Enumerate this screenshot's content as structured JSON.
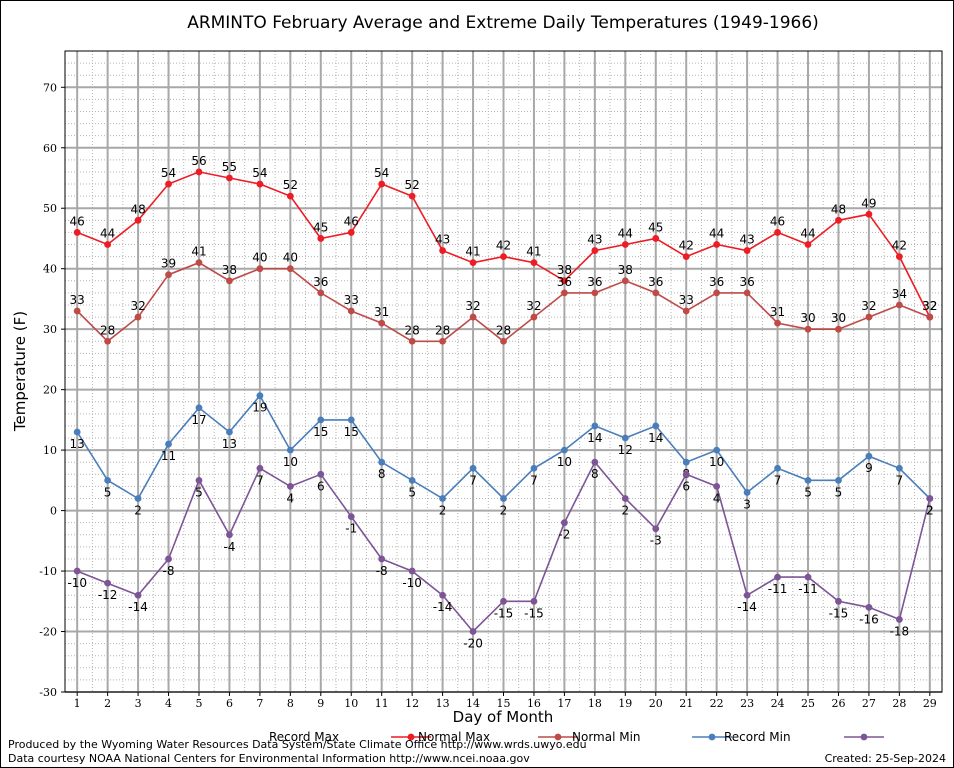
{
  "chart_data": {
    "type": "line",
    "title": "ARMINTO February Average and Extreme Daily Temperatures (1949-1966)",
    "xlabel": "Day of Month",
    "ylabel": "Temperature (F)",
    "x": [
      1,
      2,
      3,
      4,
      5,
      6,
      7,
      8,
      9,
      10,
      11,
      12,
      13,
      14,
      15,
      16,
      17,
      18,
      19,
      20,
      21,
      22,
      23,
      24,
      25,
      26,
      27,
      28,
      29
    ],
    "ylim": [
      -30,
      76
    ],
    "yticks": [
      -30,
      -20,
      -10,
      0,
      10,
      20,
      30,
      40,
      50,
      60,
      70
    ],
    "grid": true,
    "legend": "bottom",
    "series": [
      {
        "name": "Record Max",
        "color": "#ee1c24",
        "values": [
          46,
          44,
          48,
          54,
          56,
          55,
          54,
          52,
          45,
          46,
          54,
          52,
          43,
          41,
          42,
          41,
          38,
          43,
          44,
          45,
          42,
          44,
          43,
          46,
          44,
          48,
          49,
          42,
          32
        ]
      },
      {
        "name": "Normal Max",
        "color": "#be4b48",
        "values": [
          33,
          28,
          32,
          39,
          41,
          38,
          40,
          40,
          36,
          33,
          31,
          28,
          28,
          32,
          28,
          32,
          36,
          36,
          38,
          36,
          33,
          36,
          36,
          31,
          30,
          30,
          32,
          34,
          32
        ]
      },
      {
        "name": "Normal Min",
        "color": "#4a7ebb",
        "values": [
          13,
          5,
          2,
          11,
          17,
          13,
          19,
          10,
          15,
          15,
          8,
          5,
          2,
          7,
          2,
          7,
          10,
          14,
          12,
          14,
          8,
          10,
          3,
          7,
          5,
          5,
          9,
          7,
          2
        ]
      },
      {
        "name": "Record Min",
        "color": "#7d5596",
        "values": [
          -10,
          -12,
          -14,
          -8,
          5,
          -4,
          7,
          4,
          6,
          -1,
          -8,
          -10,
          -14,
          -20,
          -15,
          -15,
          -2,
          8,
          2,
          -3,
          6,
          4,
          -14,
          -11,
          -11,
          -15,
          -16,
          -18,
          2
        ]
      }
    ]
  },
  "footer": {
    "produced_by": "Produced by the Wyoming Water Resources Data System/State Climate Office http://www.wrds.uwyo.edu",
    "courtesy": "Data courtesy NOAA National Centers for Environmental Information http://www.ncei.noaa.gov",
    "created": "Created:  25-Sep-2024"
  }
}
